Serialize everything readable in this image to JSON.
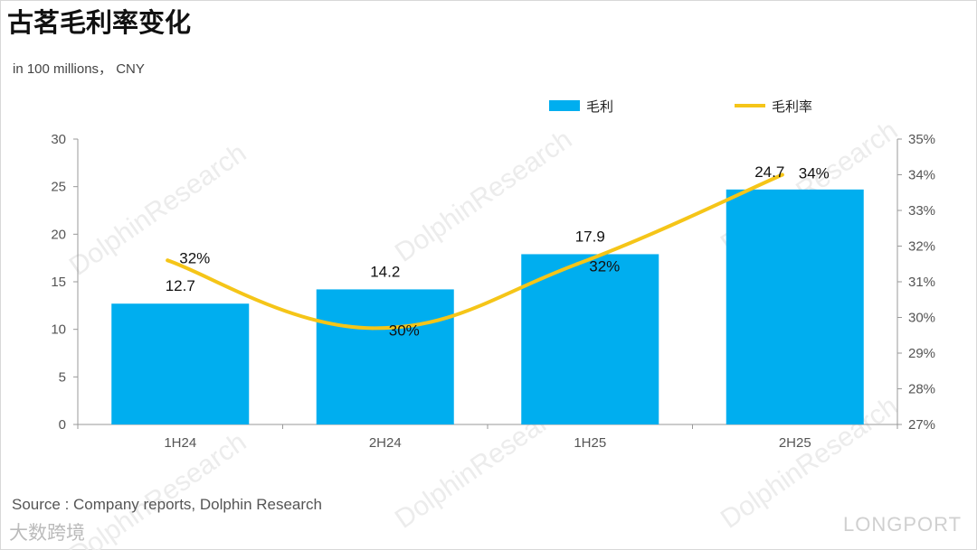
{
  "title": "古茗毛利率变化",
  "unit_note": "in 100 millions， CNY",
  "source": "Source : Company reports, Dolphin Research",
  "footer": {
    "left_brand": "大数跨境",
    "right_brand": "LONGPORT"
  },
  "watermark": "DolphinResearch",
  "colors": {
    "bar": "#00AEEF",
    "line": "#F5C518",
    "axis": "#999999"
  },
  "chart_data": {
    "type": "bar",
    "title": "古茗毛利率变化",
    "categories": [
      "1H24",
      "2H24",
      "1H25",
      "2H25"
    ],
    "series": [
      {
        "name": "毛利",
        "type": "bar",
        "axis": "left",
        "values": [
          12.7,
          14.2,
          17.9,
          24.7
        ],
        "labels": [
          "12.7",
          "14.2",
          "17.9",
          "24.7"
        ]
      },
      {
        "name": "毛利率",
        "type": "line",
        "axis": "right",
        "values": [
          31.6,
          29.7,
          31.5,
          34.0
        ],
        "labels": [
          "32%",
          "30%",
          "32%",
          "34%"
        ]
      }
    ],
    "left_axis": {
      "min": 0,
      "max": 30,
      "ticks": [
        "0",
        "5",
        "10",
        "15",
        "20",
        "25",
        "30"
      ]
    },
    "right_axis": {
      "min": 27,
      "max": 35,
      "ticks": [
        "27%",
        "28%",
        "29%",
        "30%",
        "31%",
        "32%",
        "33%",
        "34%",
        "35%"
      ]
    },
    "legend_position": "top-right",
    "grid": false
  }
}
